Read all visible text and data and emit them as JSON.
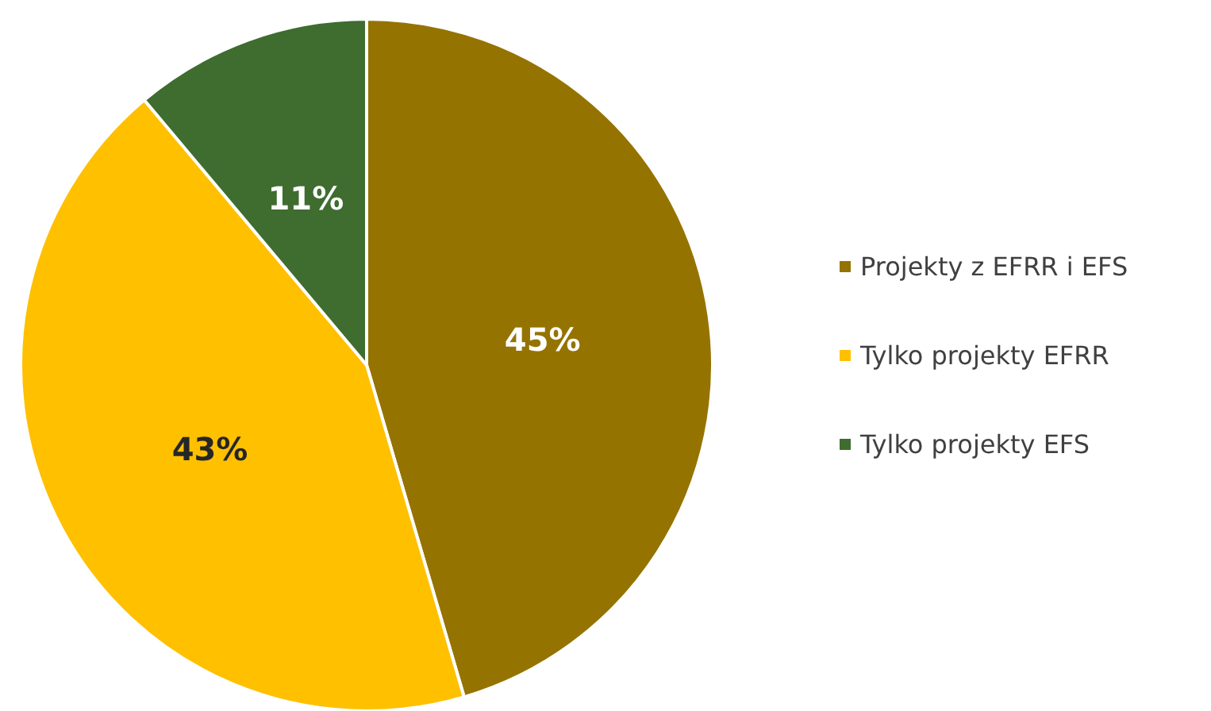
{
  "chart_data": {
    "type": "pie",
    "categories": [
      "Projekty z EFRR i EFS",
      "Tylko projekty EFRR",
      "Tylko projekty EFS"
    ],
    "values": [
      45,
      43,
      11
    ],
    "colors": [
      "#957300",
      "#ffc000",
      "#3f6c2f"
    ],
    "value_labels": [
      "45%",
      "43%",
      "11%"
    ],
    "legend": "right"
  }
}
